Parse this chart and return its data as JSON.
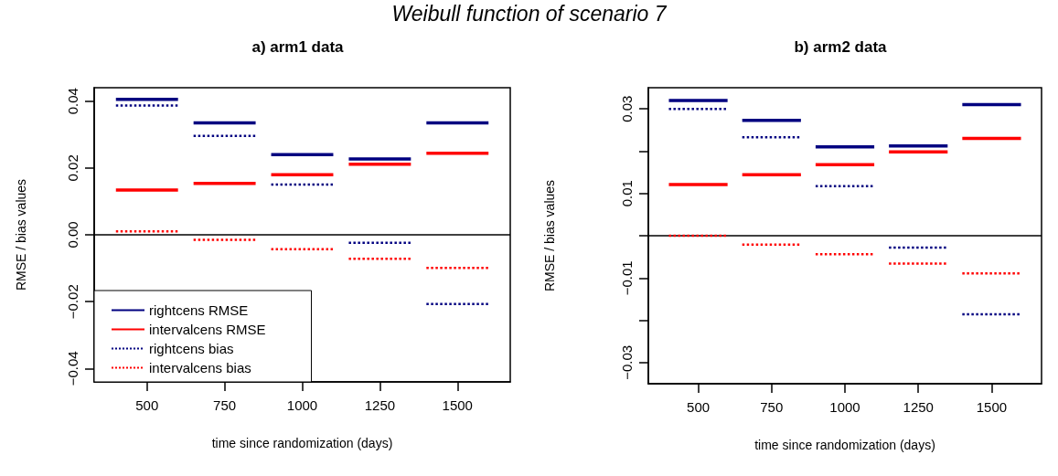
{
  "chart_data": [
    {
      "type": "line",
      "title": "Weibull function of scenario 7",
      "subtitle": "a) arm1 data",
      "xlabel": "time since randomization (days)",
      "ylabel": "RMSE / bias values",
      "x": [
        400,
        600,
        625,
        650,
        850,
        875,
        900,
        1100,
        1125,
        1150,
        1350,
        1375,
        1400,
        1600
      ],
      "series": [
        {
          "name": "rightcens RMSE",
          "color": "#000080",
          "line_style": "solid",
          "values": [
            0.0405,
            0.0405,
            null,
            0.0335,
            0.0335,
            null,
            0.024,
            0.024,
            null,
            0.0227,
            0.0227,
            null,
            0.0335,
            0.0335
          ]
        },
        {
          "name": "intervalcens RMSE",
          "color": "#ff0000",
          "line_style": "solid",
          "values": [
            0.0134,
            0.0134,
            null,
            0.0154,
            0.0154,
            null,
            0.018,
            0.018,
            null,
            0.0211,
            0.0211,
            null,
            0.0244,
            0.0244
          ]
        },
        {
          "name": "rightcens bias",
          "color": "#000080",
          "line_style": "dotted",
          "values": [
            0.0387,
            0.0387,
            null,
            0.0296,
            0.0296,
            null,
            0.015,
            0.015,
            null,
            -0.0024,
            -0.0024,
            null,
            -0.0207,
            -0.0207
          ]
        },
        {
          "name": "intervalcens bias",
          "color": "#ff0000",
          "line_style": "dotted",
          "values": [
            0.001,
            0.001,
            null,
            -0.0015,
            -0.0015,
            null,
            -0.0043,
            -0.0043,
            null,
            -0.0072,
            -0.0072,
            null,
            -0.0099,
            -0.0099
          ]
        }
      ],
      "xlim": [
        330,
        1670
      ],
      "xticks": [
        500,
        750,
        1000,
        1250,
        1500
      ],
      "ylim": [
        -0.044,
        0.044
      ],
      "yticks": [
        {
          "value": -0.04,
          "label": "−0.04"
        },
        {
          "value": -0.02,
          "label": "−0.02"
        },
        {
          "value": 0,
          "label": "0.00"
        },
        {
          "value": 0.02,
          "label": "0.02"
        },
        {
          "value": 0.04,
          "label": "0.04"
        }
      ],
      "ref_lines": [
        {
          "axis": "y",
          "value": 0,
          "color": "#000000"
        }
      ],
      "grid": false,
      "legend": "bottom left",
      "marker": "none"
    },
    {
      "type": "line",
      "subtitle": "b) arm2 data",
      "xlabel": "time since randomization (days)",
      "ylabel": "RMSE / bias values",
      "x": [
        400,
        600,
        625,
        650,
        850,
        875,
        900,
        1100,
        1125,
        1150,
        1350,
        1375,
        1400,
        1600
      ],
      "series": [
        {
          "color": "#000080",
          "line_style": "solid",
          "values": [
            0.032,
            0.032,
            null,
            0.0273,
            0.0273,
            null,
            0.021,
            0.021,
            null,
            0.0212,
            0.0212,
            null,
            0.031,
            0.031
          ]
        },
        {
          "color": "#ff0000",
          "line_style": "solid",
          "values": [
            0.0121,
            0.0121,
            null,
            0.0144,
            0.0144,
            null,
            0.0168,
            0.0168,
            null,
            0.0198,
            0.0198,
            null,
            0.023,
            0.023
          ]
        },
        {
          "color": "#000080",
          "line_style": "dotted",
          "values": [
            0.03,
            0.03,
            null,
            0.0233,
            0.0233,
            null,
            0.0117,
            0.0117,
            null,
            -0.0028,
            -0.0028,
            null,
            -0.0186,
            -0.0186
          ]
        },
        {
          "color": "#ff0000",
          "line_style": "dotted",
          "values": [
            0.0,
            0.0,
            null,
            -0.0021,
            -0.0021,
            null,
            -0.0044,
            -0.0044,
            null,
            -0.0066,
            -0.0066,
            null,
            -0.0089,
            -0.0089
          ]
        }
      ],
      "xlim": [
        330,
        1670
      ],
      "xticks": [
        500,
        750,
        1000,
        1250,
        1500
      ],
      "ylim": [
        -0.035,
        0.035
      ],
      "yticks": [
        {
          "value": -0.03,
          "label": "−0.03"
        },
        {
          "value": -0.02,
          "label": null
        },
        {
          "value": -0.01,
          "label": "−0.01"
        },
        {
          "value": 0,
          "label": null
        },
        {
          "value": 0.01,
          "label": "0.01"
        },
        {
          "value": 0.02,
          "label": null
        },
        {
          "value": 0.03,
          "label": "0.03"
        }
      ],
      "ref_lines": [
        {
          "axis": "y",
          "value": 0,
          "color": "#000000"
        }
      ],
      "grid": false,
      "legend": false,
      "marker": "none"
    }
  ]
}
